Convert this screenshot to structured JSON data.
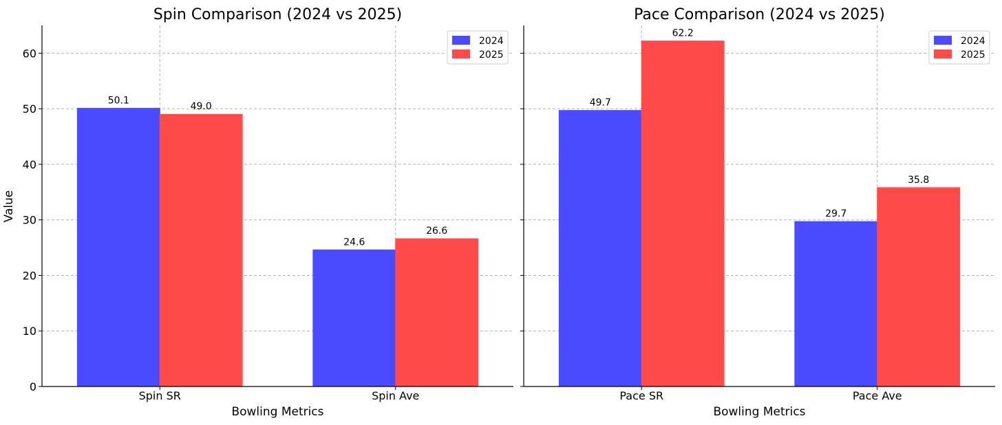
{
  "colors": {
    "2024": "#4a4aff",
    "2025": "#ff4a4a"
  },
  "y_axis_label": "Value",
  "chart_data": [
    {
      "type": "bar",
      "title": "Spin Comparison (2024 vs 2025)",
      "xlabel": "Bowling Metrics",
      "ylabel": "Value",
      "ylim": [
        0,
        65
      ],
      "yticks": [
        0,
        10,
        20,
        30,
        40,
        50,
        60
      ],
      "grid": true,
      "legend_position": "top-right",
      "categories": [
        "Spin SR",
        "Spin Ave"
      ],
      "series": [
        {
          "name": "2024",
          "values": [
            50.1,
            24.6
          ],
          "labels": [
            "50.1",
            "24.6"
          ]
        },
        {
          "name": "2025",
          "values": [
            49.0,
            26.6
          ],
          "labels": [
            "49.0",
            "26.6"
          ]
        }
      ]
    },
    {
      "type": "bar",
      "title": "Pace Comparison (2024 vs 2025)",
      "xlabel": "Bowling Metrics",
      "ylabel": "",
      "ylim": [
        0,
        65
      ],
      "yticks": [
        0,
        10,
        20,
        30,
        40,
        50,
        60
      ],
      "grid": true,
      "legend_position": "top-right",
      "categories": [
        "Pace SR",
        "Pace Ave"
      ],
      "series": [
        {
          "name": "2024",
          "values": [
            49.7,
            29.7
          ],
          "labels": [
            "49.7",
            "29.7"
          ]
        },
        {
          "name": "2025",
          "values": [
            62.2,
            35.8
          ],
          "labels": [
            "62.2",
            "35.8"
          ]
        }
      ]
    }
  ]
}
